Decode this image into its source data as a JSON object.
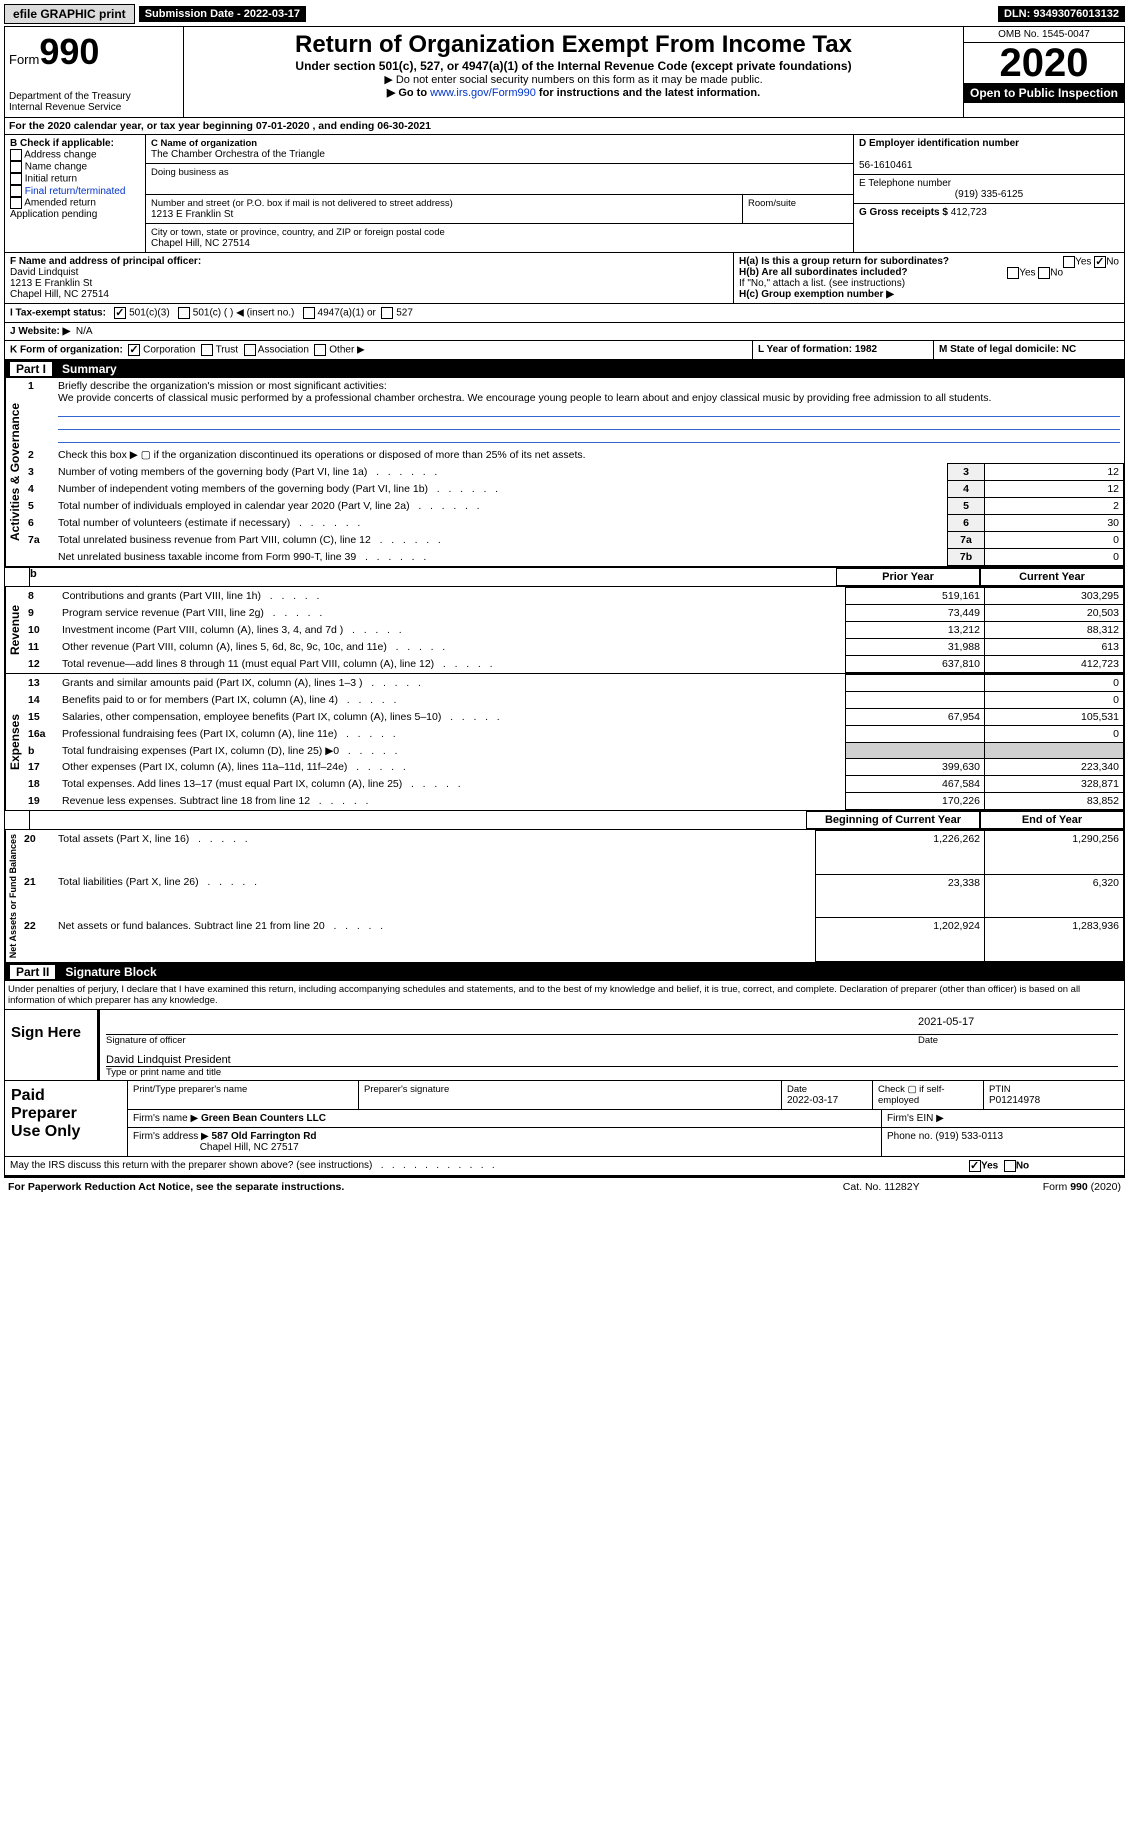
{
  "topbar": {
    "efile": "efile GRAPHIC print",
    "submission_label": "Submission Date - 2022-03-17",
    "dln_label": "DLN: 93493076013132"
  },
  "header": {
    "form_word": "Form",
    "form_num": "990",
    "dept": "Department of the Treasury",
    "irs": "Internal Revenue Service",
    "title": "Return of Organization Exempt From Income Tax",
    "subtitle": "Under section 501(c), 527, or 4947(a)(1) of the Internal Revenue Code (except private foundations)",
    "instr1": "▶ Do not enter social security numbers on this form as it may be made public.",
    "instr2_pre": "▶ Go to ",
    "instr2_link": "www.irs.gov/Form990",
    "instr2_post": " for instructions and the latest information.",
    "omb": "OMB No. 1545-0047",
    "year": "2020",
    "inspect": "Open to Public Inspection"
  },
  "A": {
    "text": "For the 2020 calendar year, or tax year beginning 07-01-2020    , and ending 06-30-2021"
  },
  "B": {
    "label": "B Check if applicable:",
    "opts": [
      "Address change",
      "Name change",
      "Initial return",
      "Final return/terminated",
      "Amended return",
      "Application pending"
    ]
  },
  "C": {
    "label": "C Name of organization",
    "name": "The Chamber Orchestra of the Triangle",
    "dba": "Doing business as",
    "street_label": "Number and street (or P.O. box if mail is not delivered to street address)",
    "room": "Room/suite",
    "street": "1213 E Franklin St",
    "city_label": "City or town, state or province, country, and ZIP or foreign postal code",
    "city": "Chapel Hill, NC  27514"
  },
  "D": {
    "label": "D Employer identification number",
    "val": "56-1610461"
  },
  "E": {
    "label": "E Telephone number",
    "val": "(919) 335-6125"
  },
  "G": {
    "label": "G Gross receipts $",
    "val": "412,723"
  },
  "F": {
    "label": "F  Name and address of principal officer:",
    "name": "David Lindquist",
    "street": "1213 E Franklin St",
    "city": "Chapel Hill, NC  27514"
  },
  "H": {
    "a_label": "H(a)  Is this a group return for subordinates?",
    "a_yes": "Yes",
    "a_no": "No",
    "b_label": "H(b)  Are all subordinates included?",
    "b_yes": "Yes",
    "b_no": "No",
    "b_note": "If \"No,\" attach a list. (see instructions)",
    "c_label": "H(c)  Group exemption number ▶"
  },
  "I": {
    "label": "I    Tax-exempt status:",
    "o1": "501(c)(3)",
    "o2": "501(c) (  ) ◀ (insert no.)",
    "o3": "4947(a)(1) or",
    "o4": "527"
  },
  "J": {
    "label": "J    Website: ▶",
    "val": "N/A"
  },
  "K": {
    "label": "K Form of organization:",
    "o1": "Corporation",
    "o2": "Trust",
    "o3": "Association",
    "o4": "Other ▶"
  },
  "L": {
    "label": "L Year of formation: 1982"
  },
  "M": {
    "label": "M State of legal domicile: NC"
  },
  "part1": {
    "num": "Part I",
    "title": "Summary"
  },
  "summary": {
    "line1_label": "Briefly describe the organization's mission or most significant activities:",
    "line1_text": "We provide concerts of classical music performed by a professional chamber orchestra. We encourage young people to learn about and enjoy classical music by providing free admission to all students.",
    "line2": "Check this box ▶ ▢ if the organization discontinued its operations or disposed of more than 25% of its net assets.",
    "rows_top": [
      {
        "n": "3",
        "t": "Number of voting members of the governing body (Part VI, line 1a)",
        "ln": "3",
        "v": "12"
      },
      {
        "n": "4",
        "t": "Number of independent voting members of the governing body (Part VI, line 1b)",
        "ln": "4",
        "v": "12"
      },
      {
        "n": "5",
        "t": "Total number of individuals employed in calendar year 2020 (Part V, line 2a)",
        "ln": "5",
        "v": "2"
      },
      {
        "n": "6",
        "t": "Total number of volunteers (estimate if necessary)",
        "ln": "6",
        "v": "30"
      },
      {
        "n": "7a",
        "t": "Total unrelated business revenue from Part VIII, column (C), line 12",
        "ln": "7a",
        "v": "0"
      },
      {
        "n": "",
        "t": "Net unrelated business taxable income from Form 990-T, line 39",
        "ln": "7b",
        "v": "0"
      }
    ],
    "col_prior": "Prior Year",
    "col_current": "Current Year",
    "revenue_rows": [
      {
        "n": "8",
        "t": "Contributions and grants (Part VIII, line 1h)",
        "p": "519,161",
        "c": "303,295"
      },
      {
        "n": "9",
        "t": "Program service revenue (Part VIII, line 2g)",
        "p": "73,449",
        "c": "20,503"
      },
      {
        "n": "10",
        "t": "Investment income (Part VIII, column (A), lines 3, 4, and 7d )",
        "p": "13,212",
        "c": "88,312"
      },
      {
        "n": "11",
        "t": "Other revenue (Part VIII, column (A), lines 5, 6d, 8c, 9c, 10c, and 11e)",
        "p": "31,988",
        "c": "613"
      },
      {
        "n": "12",
        "t": "Total revenue—add lines 8 through 11 (must equal Part VIII, column (A), line 12)",
        "p": "637,810",
        "c": "412,723"
      }
    ],
    "expense_rows": [
      {
        "n": "13",
        "t": "Grants and similar amounts paid (Part IX, column (A), lines 1–3 )",
        "p": "",
        "c": "0"
      },
      {
        "n": "14",
        "t": "Benefits paid to or for members (Part IX, column (A), line 4)",
        "p": "",
        "c": "0"
      },
      {
        "n": "15",
        "t": "Salaries, other compensation, employee benefits (Part IX, column (A), lines 5–10)",
        "p": "67,954",
        "c": "105,531"
      },
      {
        "n": "16a",
        "t": "Professional fundraising fees (Part IX, column (A), line 11e)",
        "p": "",
        "c": "0"
      },
      {
        "n": "b",
        "t": "Total fundraising expenses (Part IX, column (D), line 25) ▶0",
        "p": "GREY",
        "c": "GREY"
      },
      {
        "n": "17",
        "t": "Other expenses (Part IX, column (A), lines 11a–11d, 11f–24e)",
        "p": "399,630",
        "c": "223,340"
      },
      {
        "n": "18",
        "t": "Total expenses. Add lines 13–17 (must equal Part IX, column (A), line 25)",
        "p": "467,584",
        "c": "328,871"
      },
      {
        "n": "19",
        "t": "Revenue less expenses. Subtract line 18 from line 12",
        "p": "170,226",
        "c": "83,852"
      }
    ],
    "col_begin": "Beginning of Current Year",
    "col_end": "End of Year",
    "net_rows": [
      {
        "n": "20",
        "t": "Total assets (Part X, line 16)",
        "p": "1,226,262",
        "c": "1,290,256"
      },
      {
        "n": "21",
        "t": "Total liabilities (Part X, line 26)",
        "p": "23,338",
        "c": "6,320"
      },
      {
        "n": "22",
        "t": "Net assets or fund balances. Subtract line 21 from line 20",
        "p": "1,202,924",
        "c": "1,283,936"
      }
    ]
  },
  "sidelabels": {
    "governance": "Activities & Governance",
    "revenue": "Revenue",
    "expenses": "Expenses",
    "net": "Net Assets or Fund Balances"
  },
  "part2": {
    "num": "Part II",
    "title": "Signature Block"
  },
  "perjury": "Under penalties of perjury, I declare that I have examined this return, including accompanying schedules and statements, and to the best of my knowledge and belief, it is true, correct, and complete. Declaration of preparer (other than officer) is based on all information of which preparer has any knowledge.",
  "sign": {
    "side": "Sign Here",
    "sigline": "Signature of officer",
    "date": "2021-05-17",
    "date_label": "Date",
    "name": "David Lindquist President",
    "name_label": "Type or print name and title"
  },
  "paid": {
    "side1": "Paid",
    "side2": "Preparer",
    "side3": "Use Only",
    "h1": "Print/Type preparer's name",
    "h2": "Preparer's signature",
    "h3": "Date",
    "h3v": "2022-03-17",
    "h4": "Check ▢ if self-employed",
    "h5": "PTIN",
    "h5v": "P01214978",
    "firm_label": "Firm's name    ▶",
    "firm": "Green Bean Counters LLC",
    "ein_label": "Firm's EIN ▶",
    "addr_label": "Firm's address ▶",
    "addr1": "587 Old Farrington Rd",
    "addr2": "Chapel Hill, NC  27517",
    "phone_label": "Phone no.",
    "phone": "(919) 533-0113"
  },
  "footer": {
    "discuss": "May the IRS discuss this return with the preparer shown above? (see instructions)",
    "yes": "Yes",
    "no": "No",
    "paperwork": "For Paperwork Reduction Act Notice, see the separate instructions.",
    "cat": "Cat. No. 11282Y",
    "formref": "Form 990 (2020)"
  },
  "colors": {
    "link": "#0033cc",
    "black": "#000000",
    "grey": "#d0d0d0"
  }
}
